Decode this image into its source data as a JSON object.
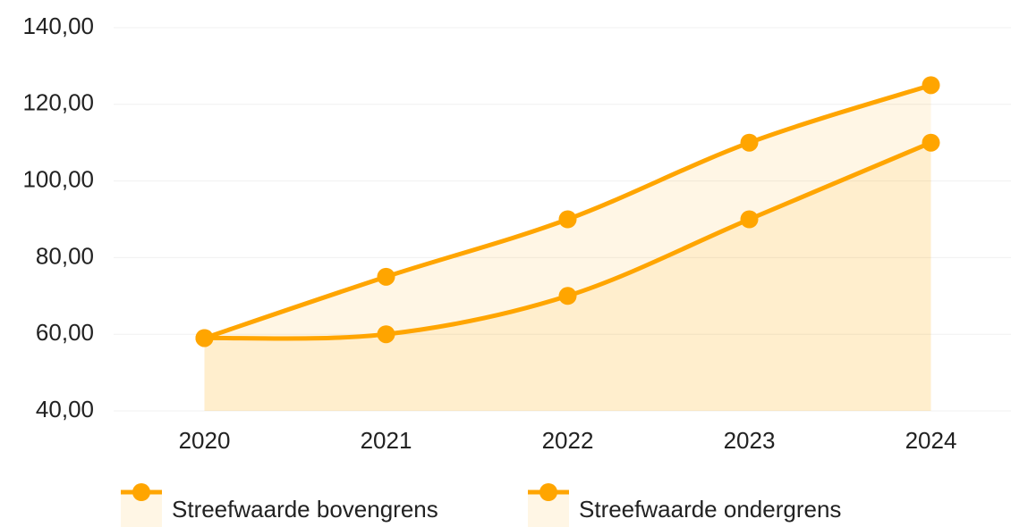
{
  "chart_data": {
    "type": "line",
    "categories": [
      "2020",
      "2021",
      "2022",
      "2023",
      "2024"
    ],
    "series": [
      {
        "name": "Streefwaarde bovengrens",
        "color": "#ffa500",
        "values": [
          59,
          75,
          90,
          110,
          125
        ]
      },
      {
        "name": "Streefwaarde ondergrens",
        "color": "#ffa500",
        "values": [
          59,
          60,
          70,
          90,
          110
        ]
      }
    ],
    "ylim": [
      40,
      140
    ],
    "yticks": [
      {
        "value": 40,
        "label": "40,00"
      },
      {
        "value": 60,
        "label": "60,00"
      },
      {
        "value": 80,
        "label": "80,00"
      },
      {
        "value": 100,
        "label": "100,00"
      },
      {
        "value": 120,
        "label": "120,00"
      },
      {
        "value": 140,
        "label": "140,00"
      }
    ],
    "grid": true,
    "legend": "bottom"
  }
}
